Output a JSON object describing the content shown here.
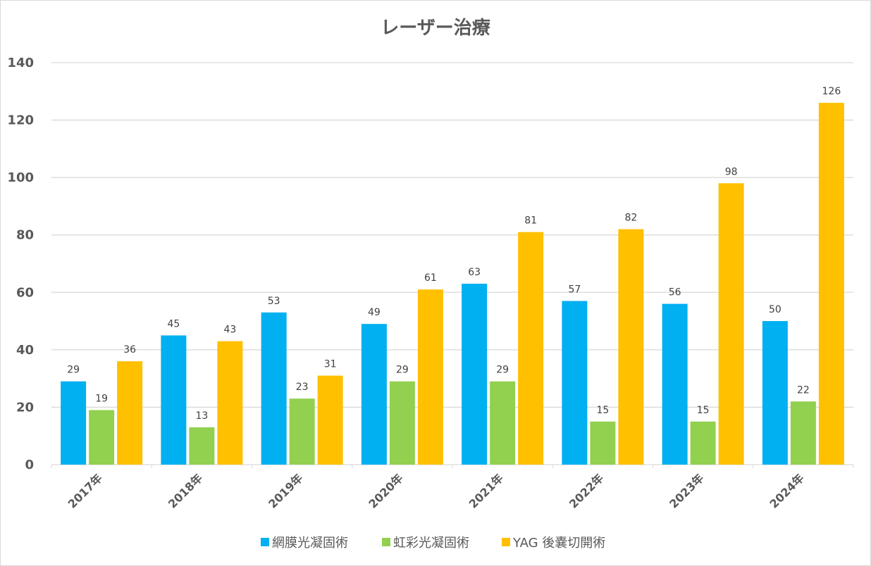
{
  "chart_data": {
    "type": "bar",
    "title": "レーザー治療",
    "categories": [
      "2017年",
      "2018年",
      "2019年",
      "2020年",
      "2021年",
      "2022年",
      "2023年",
      "2024年"
    ],
    "series": [
      {
        "name": "網膜光凝固術",
        "color": "#00B0F0",
        "values": [
          29,
          45,
          53,
          49,
          63,
          57,
          56,
          50
        ]
      },
      {
        "name": "虹彩光凝固術",
        "color": "#92D050",
        "values": [
          19,
          13,
          23,
          29,
          29,
          15,
          15,
          22
        ]
      },
      {
        "name": "YAG 後嚢切開術",
        "color": "#FFC000",
        "values": [
          36,
          43,
          31,
          61,
          81,
          82,
          98,
          126
        ]
      }
    ],
    "ylim": [
      0,
      140
    ],
    "yticks": [
      0,
      20,
      40,
      60,
      80,
      100,
      120,
      140
    ],
    "grid": true,
    "legend": "bottom",
    "xlabel": "",
    "ylabel": ""
  }
}
